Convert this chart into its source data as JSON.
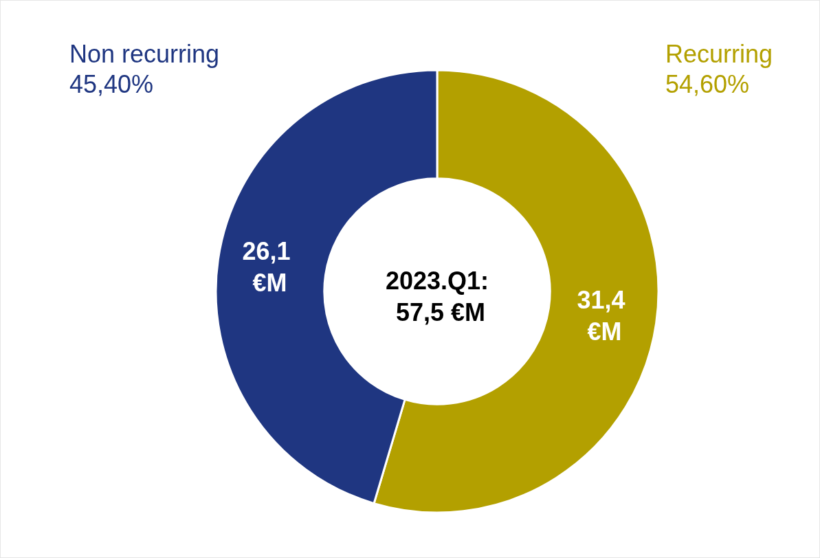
{
  "chart_data": {
    "type": "donut",
    "title": "2023.Q1: 57,5 €M",
    "categories": [
      "Recurring",
      "Non recurring"
    ],
    "values": [
      31.4,
      26.1
    ],
    "colors": [
      "#b3a000",
      "#1f3681"
    ],
    "value_labels": [
      "31,4 €M",
      "26,1 €M"
    ],
    "annotations": [
      "54,60%",
      "45,40%"
    ],
    "legend": false
  }
}
